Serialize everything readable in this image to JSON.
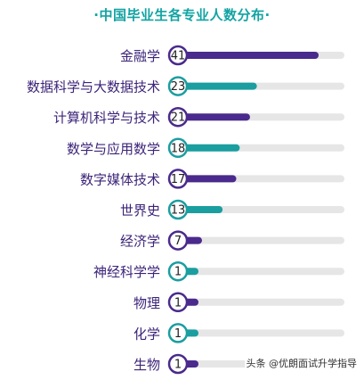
{
  "chart_data": {
    "type": "bar",
    "title": "·中国毕业生各专业人数分布·",
    "categories": [
      "金融学",
      "数据科学与大数据技术",
      "计算机科学与技术",
      "数学与应用数学",
      "数字媒体技术",
      "世界史",
      "经济学",
      "神经科学学",
      "物理",
      "化学",
      "生物"
    ],
    "values": [
      41,
      23,
      21,
      18,
      17,
      13,
      7,
      1,
      1,
      1,
      1
    ],
    "xlim": [
      0,
      50
    ],
    "grid": false,
    "legend": "none"
  },
  "colors": {
    "title": "#12a3a3",
    "label": "#3d2479",
    "purple": "#4a2a8c",
    "teal": "#1a9ea0",
    "track": "#e6e6e6"
  },
  "bar_colors": [
    "purple",
    "teal",
    "purple",
    "teal",
    "purple",
    "teal",
    "purple",
    "teal",
    "purple",
    "teal",
    "purple"
  ],
  "watermark": "头条 @优朗面试升学指导"
}
